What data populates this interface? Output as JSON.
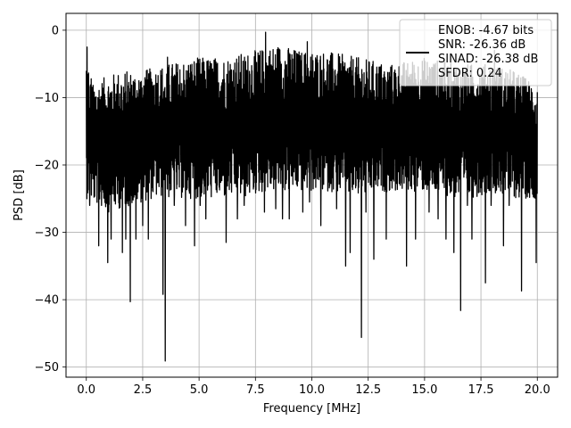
{
  "chart_data": {
    "type": "line",
    "xlabel": "Frequency [MHz]",
    "ylabel": "PSD [dB]",
    "xlim": [
      -0.9,
      20.9
    ],
    "ylim": [
      -51.5,
      2.5
    ],
    "xticks": [
      0.0,
      2.5,
      5.0,
      7.5,
      10.0,
      12.5,
      15.0,
      17.5,
      20.0
    ],
    "xtick_labels": [
      "0.0",
      "2.5",
      "5.0",
      "7.5",
      "10.0",
      "12.5",
      "15.0",
      "17.5",
      "20.0"
    ],
    "yticks": [
      0,
      -10,
      -20,
      -30,
      -40,
      -50
    ],
    "ytick_labels": [
      "0",
      "−10",
      "−20",
      "−30",
      "−40",
      "−50"
    ],
    "grid": true,
    "legend_position": "top-right",
    "line_color": "#000000",
    "legend_lines": [
      "ENOB: -4.67 bits",
      "SNR: -26.36 dB",
      "SINAD: -26.38 dB",
      "SFDR: 0.24"
    ],
    "series": [
      {
        "x_start": 0.0,
        "x_end": 20.0,
        "band_upper_envelope": [
          [
            0,
            -3
          ],
          [
            0.3,
            -8
          ],
          [
            0.8,
            -7
          ],
          [
            1.5,
            -6
          ],
          [
            2.5,
            -6
          ],
          [
            3.5,
            -5
          ],
          [
            5,
            -4
          ],
          [
            6,
            -4
          ],
          [
            7.5,
            -3
          ],
          [
            8.5,
            -2
          ],
          [
            9.5,
            -3
          ],
          [
            10.5,
            -3
          ],
          [
            12,
            -4
          ],
          [
            13.5,
            -5
          ],
          [
            15,
            -4
          ],
          [
            16.5,
            -5
          ],
          [
            18,
            -5
          ],
          [
            19,
            -6
          ],
          [
            20,
            -8
          ]
        ],
        "band_lower_envelope": [
          [
            0,
            -25
          ],
          [
            1,
            -27
          ],
          [
            2,
            -26
          ],
          [
            3,
            -25
          ],
          [
            4,
            -25
          ],
          [
            5,
            -25
          ],
          [
            6,
            -25
          ],
          [
            7,
            -25
          ],
          [
            8,
            -24
          ],
          [
            9,
            -24
          ],
          [
            10,
            -24
          ],
          [
            11,
            -24
          ],
          [
            12,
            -25
          ],
          [
            13,
            -24
          ],
          [
            14,
            -24
          ],
          [
            15,
            -24
          ],
          [
            16,
            -25
          ],
          [
            17,
            -25
          ],
          [
            18,
            -24
          ],
          [
            19,
            -25
          ],
          [
            20,
            -25
          ]
        ],
        "peaks": [
          [
            0.03,
            -2.5
          ],
          [
            1.1,
            -8
          ],
          [
            3.6,
            -4
          ],
          [
            7.95,
            -0.3
          ],
          [
            9.8,
            -1.7
          ],
          [
            10.9,
            -3.5
          ],
          [
            18.1,
            -3
          ]
        ],
        "dips": [
          [
            0.15,
            -26
          ],
          [
            0.55,
            -32
          ],
          [
            0.95,
            -34.5
          ],
          [
            1.1,
            -31
          ],
          [
            1.6,
            -33
          ],
          [
            1.75,
            -31
          ],
          [
            1.95,
            -40.3
          ],
          [
            2.2,
            -31
          ],
          [
            2.5,
            -29
          ],
          [
            2.75,
            -31
          ],
          [
            3.4,
            -39.2
          ],
          [
            3.5,
            -49.1
          ],
          [
            3.9,
            -26
          ],
          [
            4.4,
            -29
          ],
          [
            4.8,
            -32
          ],
          [
            5.05,
            -26
          ],
          [
            5.3,
            -28
          ],
          [
            6.2,
            -31.5
          ],
          [
            6.7,
            -28
          ],
          [
            7.0,
            -26
          ],
          [
            7.9,
            -27
          ],
          [
            8.4,
            -26.5
          ],
          [
            8.7,
            -28
          ],
          [
            9.0,
            -28
          ],
          [
            9.6,
            -27
          ],
          [
            9.9,
            -25.5
          ],
          [
            10.4,
            -29
          ],
          [
            11.1,
            -26.5
          ],
          [
            11.5,
            -35
          ],
          [
            11.7,
            -33
          ],
          [
            12.2,
            -45.6
          ],
          [
            12.4,
            -27
          ],
          [
            12.75,
            -34
          ],
          [
            13.3,
            -31
          ],
          [
            14.2,
            -35
          ],
          [
            14.6,
            -31
          ],
          [
            15.2,
            -27
          ],
          [
            15.6,
            -28
          ],
          [
            15.95,
            -31
          ],
          [
            16.3,
            -33
          ],
          [
            16.6,
            -41.6
          ],
          [
            16.9,
            -26
          ],
          [
            17.1,
            -31
          ],
          [
            17.7,
            -37.5
          ],
          [
            17.95,
            -26
          ],
          [
            18.5,
            -32
          ],
          [
            18.75,
            -26
          ],
          [
            19.3,
            -38.7
          ],
          [
            19.55,
            -24
          ],
          [
            19.95,
            -34.5
          ]
        ]
      }
    ]
  }
}
